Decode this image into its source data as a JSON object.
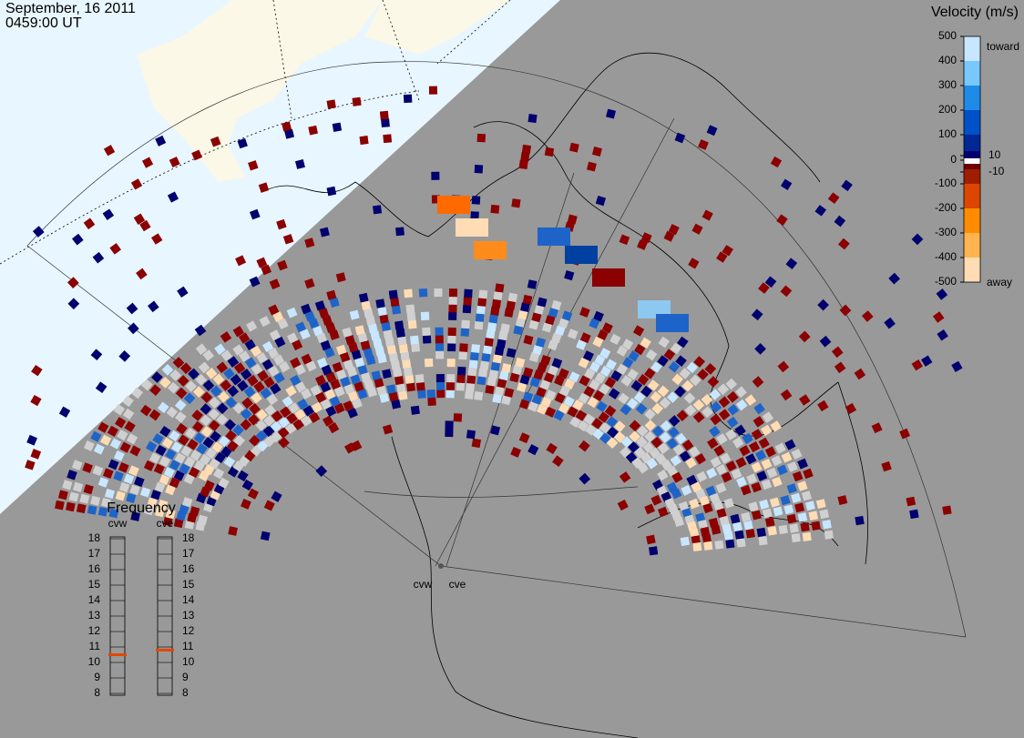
{
  "header": {
    "date": "September, 16 2011",
    "time": "0459:00 UT"
  },
  "velocity_scale": {
    "title": "Velocity (m/s)",
    "ticks": [
      500,
      400,
      300,
      200,
      100,
      10,
      0,
      -10,
      -100,
      -200,
      -300,
      -400,
      -500
    ],
    "toward": "toward",
    "away": "away"
  },
  "frequency": {
    "title": "Frequency",
    "ticks": [
      18,
      17,
      16,
      15,
      14,
      13,
      12,
      11,
      10,
      9,
      8
    ],
    "radars": [
      {
        "name": "cvw",
        "value": 10.5
      },
      {
        "name": "cve",
        "value": 10.8
      }
    ]
  },
  "stations": [
    "cvw",
    "cve"
  ]
}
